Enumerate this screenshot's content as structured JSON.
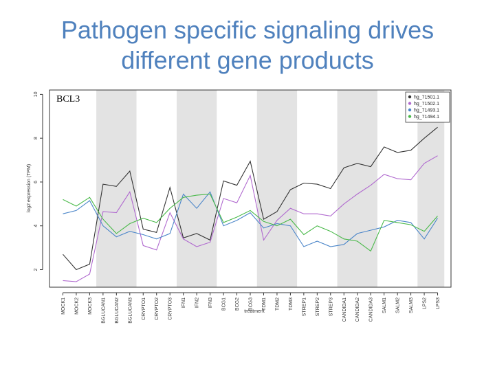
{
  "slide": {
    "title_line1": "Pathogen specific signaling drives",
    "title_line2": "different gene products"
  },
  "chart_data": {
    "type": "line",
    "title": "BCL3",
    "xlabel": "treatment",
    "ylabel": "log2 expression (TPM)",
    "ylim": [
      1.2,
      10.2
    ],
    "yticks": [
      2,
      4,
      6,
      8,
      10
    ],
    "grid": false,
    "shaded_groups": [
      "BGLUCAN",
      "IFN",
      "TDM",
      "CANDIDA",
      "LPS"
    ],
    "legend_position": "top-right",
    "categories": [
      "MOCK1",
      "MOCK2",
      "MOCK3",
      "BGLUCAN1",
      "BGLUCAN2",
      "BGLUCAN3",
      "CRYPTO1",
      "CRYPTO2",
      "CRYPTO3",
      "IFN1",
      "IFN2",
      "IFN3",
      "BCG1",
      "BCG2",
      "BCG3",
      "TDM1",
      "TDM2",
      "TDM3",
      "STREP1",
      "STREP2",
      "STREP3",
      "CANDIDA1",
      "CANDIDA2",
      "CANDIDA3",
      "SALM1",
      "SALM2",
      "SALM3",
      "LPS2",
      "LPS3"
    ],
    "series": [
      {
        "name": "hg_71501.1",
        "color": "#333333",
        "values": [
          2.7,
          2.0,
          2.25,
          5.9,
          5.8,
          6.5,
          3.85,
          3.7,
          5.75,
          3.45,
          3.65,
          3.35,
          6.05,
          5.85,
          6.95,
          4.3,
          4.65,
          5.65,
          5.95,
          5.9,
          5.7,
          6.65,
          6.85,
          6.7,
          7.6,
          7.35,
          7.45,
          8.0,
          8.5
        ]
      },
      {
        "name": "hg_71502.1",
        "color": "#b069cf",
        "values": [
          1.5,
          1.45,
          1.8,
          4.65,
          4.6,
          5.55,
          3.1,
          2.9,
          4.6,
          3.4,
          3.05,
          3.25,
          5.25,
          5.05,
          6.3,
          3.35,
          4.25,
          4.8,
          4.55,
          4.55,
          4.45,
          5.0,
          5.45,
          5.85,
          6.35,
          6.15,
          6.1,
          6.85,
          7.2
        ]
      },
      {
        "name": "hg_71493.1",
        "color": "#4a85c9",
        "values": [
          4.55,
          4.7,
          5.15,
          4.0,
          3.5,
          3.75,
          3.6,
          3.4,
          3.65,
          5.45,
          4.8,
          5.55,
          4.0,
          4.25,
          4.6,
          3.9,
          4.1,
          4.0,
          3.05,
          3.3,
          3.05,
          3.15,
          3.65,
          3.8,
          3.95,
          4.25,
          4.15,
          3.4,
          4.35
        ]
      },
      {
        "name": "hg_71494.1",
        "color": "#49b949",
        "values": [
          5.2,
          4.9,
          5.3,
          4.3,
          3.65,
          4.1,
          4.35,
          4.15,
          4.8,
          5.3,
          5.4,
          5.45,
          4.15,
          4.4,
          4.7,
          4.2,
          4.0,
          4.3,
          3.6,
          4.0,
          3.75,
          3.4,
          3.3,
          2.85,
          4.25,
          4.15,
          4.05,
          3.75,
          4.45
        ]
      }
    ]
  }
}
